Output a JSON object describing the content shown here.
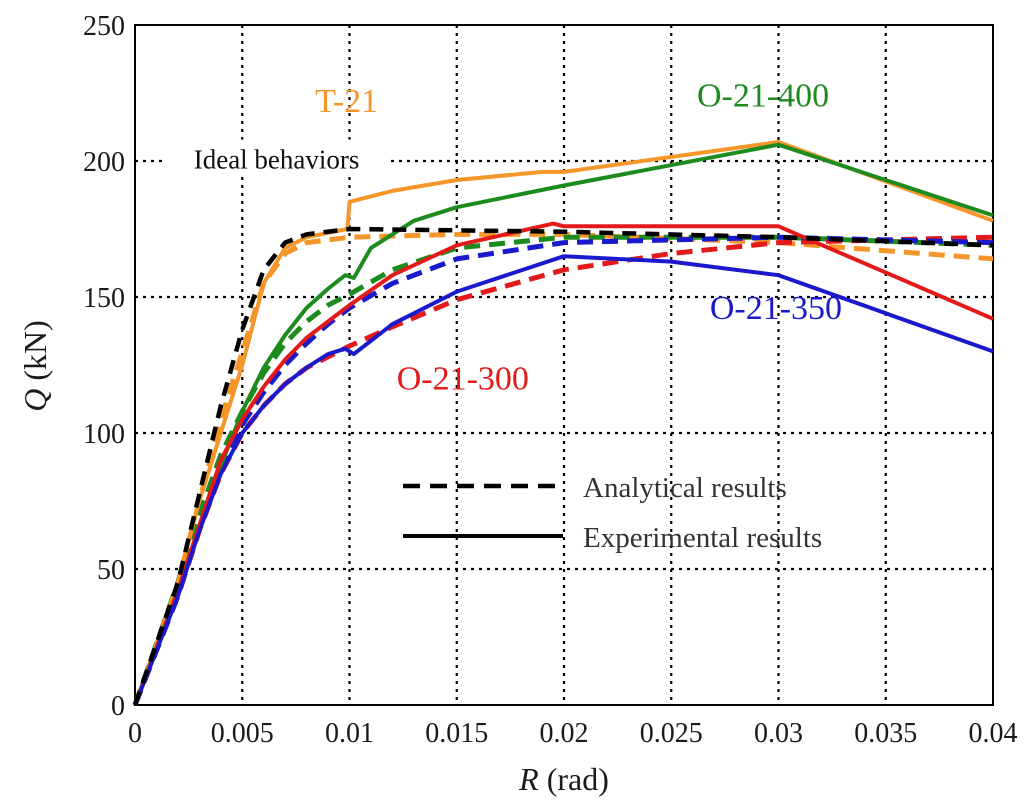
{
  "chart_data": {
    "type": "line",
    "title": "",
    "xlabel": "R",
    "xlabel_unit": "(rad)",
    "ylabel": "Q",
    "ylabel_unit": "(kN)",
    "xlim": [
      0,
      0.04
    ],
    "ylim": [
      0,
      250
    ],
    "xticks": [
      "0",
      "0.005",
      "0.01",
      "0.015",
      "0.02",
      "0.025",
      "0.03",
      "0.035",
      "0.04"
    ],
    "yticks": [
      "0",
      "50",
      "100",
      "150",
      "200",
      "250"
    ],
    "grid": true,
    "annotations": [
      {
        "text": "Ideal behaviors",
        "x": 0.0066,
        "y": 200.5,
        "color": "#111111"
      }
    ],
    "legend": {
      "placement": "lower-right",
      "entries": [
        {
          "label": "Analytical results",
          "style": "dashed"
        },
        {
          "label": "Experimental results",
          "style": "solid"
        }
      ]
    },
    "ideal_curve": {
      "style": "dashed",
      "color": "#000000",
      "points": [
        [
          0,
          0
        ],
        [
          0.002,
          45
        ],
        [
          0.004,
          110
        ],
        [
          0.005,
          138
        ],
        [
          0.006,
          160
        ],
        [
          0.007,
          170
        ],
        [
          0.008,
          173
        ],
        [
          0.01,
          175
        ],
        [
          0.02,
          174
        ],
        [
          0.03,
          172
        ],
        [
          0.04,
          169
        ]
      ]
    },
    "series": [
      {
        "name": "T-21",
        "color": "#F5962A",
        "analytical": [
          [
            0,
            0
          ],
          [
            0.002,
            45
          ],
          [
            0.003,
            75
          ],
          [
            0.004,
            105
          ],
          [
            0.005,
            130
          ],
          [
            0.006,
            155
          ],
          [
            0.007,
            166
          ],
          [
            0.008,
            170
          ],
          [
            0.01,
            172
          ],
          [
            0.015,
            173
          ],
          [
            0.02,
            173
          ],
          [
            0.03,
            170
          ],
          [
            0.04,
            164
          ]
        ],
        "experimental": [
          [
            0,
            0
          ],
          [
            0.002,
            45
          ],
          [
            0.003,
            75
          ],
          [
            0.004,
            100
          ],
          [
            0.005,
            125
          ],
          [
            0.006,
            155
          ],
          [
            0.007,
            168
          ],
          [
            0.008,
            172
          ],
          [
            0.0099,
            175
          ],
          [
            0.01,
            185
          ],
          [
            0.012,
            189
          ],
          [
            0.015,
            193
          ],
          [
            0.019,
            196
          ],
          [
            0.02,
            196
          ],
          [
            0.03,
            207
          ],
          [
            0.04,
            178
          ]
        ]
      },
      {
        "name": "O-21-400",
        "color": "#1E8B1E",
        "analytical": [
          [
            0,
            0
          ],
          [
            0.002,
            45
          ],
          [
            0.003,
            70
          ],
          [
            0.004,
            92
          ],
          [
            0.005,
            108
          ],
          [
            0.006,
            122
          ],
          [
            0.007,
            133
          ],
          [
            0.008,
            141
          ],
          [
            0.009,
            147
          ],
          [
            0.01,
            151
          ],
          [
            0.012,
            160
          ],
          [
            0.015,
            168
          ],
          [
            0.02,
            172
          ],
          [
            0.03,
            172
          ],
          [
            0.04,
            169
          ]
        ],
        "experimental": [
          [
            0,
            0
          ],
          [
            0.002,
            42
          ],
          [
            0.003,
            65
          ],
          [
            0.004,
            88
          ],
          [
            0.005,
            108
          ],
          [
            0.006,
            124
          ],
          [
            0.007,
            136
          ],
          [
            0.008,
            146
          ],
          [
            0.009,
            153
          ],
          [
            0.0098,
            158
          ],
          [
            0.0102,
            157
          ],
          [
            0.011,
            168
          ],
          [
            0.013,
            178
          ],
          [
            0.015,
            183
          ],
          [
            0.02,
            191
          ],
          [
            0.03,
            206
          ],
          [
            0.04,
            180
          ]
        ]
      },
      {
        "name": "O-21-300",
        "color": "#E31A1A",
        "analytical": [
          [
            0,
            0
          ],
          [
            0.002,
            40
          ],
          [
            0.003,
            64
          ],
          [
            0.004,
            85
          ],
          [
            0.005,
            100
          ],
          [
            0.006,
            110
          ],
          [
            0.007,
            118
          ],
          [
            0.008,
            124
          ],
          [
            0.01,
            132
          ],
          [
            0.012,
            139
          ],
          [
            0.015,
            149
          ],
          [
            0.02,
            160
          ],
          [
            0.025,
            166
          ],
          [
            0.03,
            170
          ],
          [
            0.04,
            172
          ]
        ],
        "experimental": [
          [
            0,
            0
          ],
          [
            0.002,
            42
          ],
          [
            0.003,
            66
          ],
          [
            0.004,
            90
          ],
          [
            0.005,
            105
          ],
          [
            0.006,
            117
          ],
          [
            0.007,
            127
          ],
          [
            0.008,
            135
          ],
          [
            0.009,
            141
          ],
          [
            0.01,
            147
          ],
          [
            0.012,
            158
          ],
          [
            0.015,
            169
          ],
          [
            0.0195,
            177
          ],
          [
            0.02,
            176
          ],
          [
            0.03,
            176
          ],
          [
            0.04,
            142
          ]
        ]
      },
      {
        "name": "O-21-350",
        "color": "#1A1ACC",
        "analytical": [
          [
            0,
            0
          ],
          [
            0.002,
            40
          ],
          [
            0.003,
            65
          ],
          [
            0.004,
            87
          ],
          [
            0.005,
            103
          ],
          [
            0.006,
            115
          ],
          [
            0.007,
            125
          ],
          [
            0.008,
            133
          ],
          [
            0.009,
            140
          ],
          [
            0.01,
            146
          ],
          [
            0.012,
            155
          ],
          [
            0.015,
            164
          ],
          [
            0.02,
            170
          ],
          [
            0.03,
            172
          ],
          [
            0.04,
            170
          ]
        ],
        "experimental": [
          [
            0,
            0
          ],
          [
            0.002,
            40
          ],
          [
            0.003,
            64
          ],
          [
            0.004,
            85
          ],
          [
            0.005,
            100
          ],
          [
            0.006,
            110
          ],
          [
            0.007,
            118
          ],
          [
            0.008,
            124
          ],
          [
            0.009,
            129
          ],
          [
            0.0098,
            131
          ],
          [
            0.0102,
            129
          ],
          [
            0.012,
            140
          ],
          [
            0.015,
            152
          ],
          [
            0.02,
            165
          ],
          [
            0.025,
            163
          ],
          [
            0.03,
            158
          ],
          [
            0.04,
            130
          ]
        ]
      }
    ],
    "series_labels": [
      {
        "series": "T-21",
        "x": 0.0084,
        "y": 218,
        "color": "#F5962A"
      },
      {
        "series": "O-21-400",
        "x": 0.0262,
        "y": 220,
        "color": "#1E8B1E"
      },
      {
        "series": "O-21-350",
        "x": 0.0268,
        "y": 142,
        "color": "#1A1ACC"
      },
      {
        "series": "O-21-300",
        "x": 0.0122,
        "y": 116,
        "color": "#E31A1A"
      }
    ]
  }
}
